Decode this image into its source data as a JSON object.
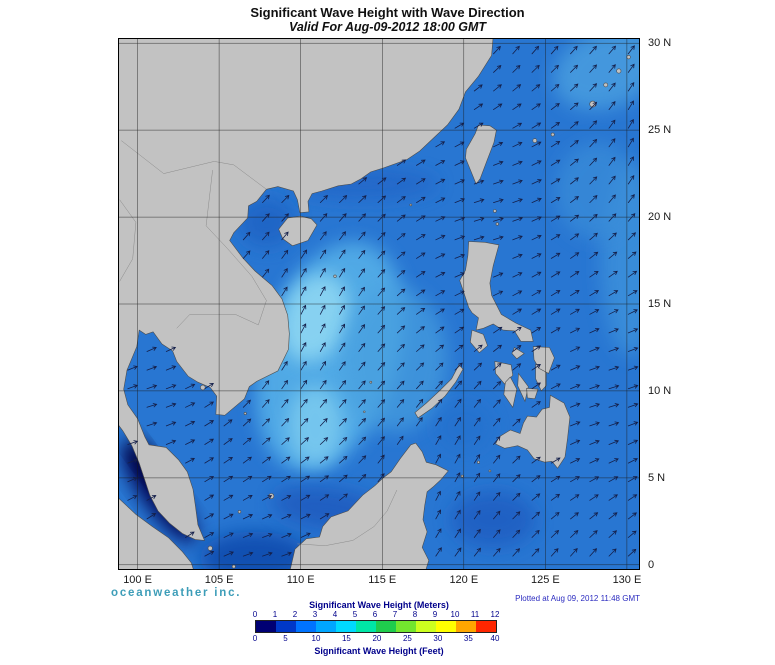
{
  "title": "Significant Wave Height with Wave Direction",
  "subtitle": "Valid For Aug-09-2012 18:00 GMT",
  "axes": {
    "lon_ticks": [
      100,
      105,
      110,
      115,
      120,
      125,
      130
    ],
    "lon_labels": [
      "100 E",
      "105 E",
      "110 E",
      "115 E",
      "120 E",
      "125 E",
      "130 E"
    ],
    "lat_ticks": [
      30,
      25,
      20,
      15,
      10,
      5,
      0
    ],
    "lat_labels": [
      "30 N",
      "25 N",
      "20 N",
      "15 N",
      "10 N",
      "5 N",
      "0"
    ]
  },
  "branding": {
    "text": "oceanweather inc.",
    "color": "#3D9DB8"
  },
  "plotted": {
    "text": "Plotted at Aug 09, 2012 11:48 GMT",
    "color": "#2B2BC0"
  },
  "legend": {
    "meters_label": "Significant Wave Height (Meters)",
    "feet_label": "Significant Wave Height (Feet)",
    "meters_ticks": [
      0,
      1,
      2,
      3,
      4,
      5,
      6,
      7,
      8,
      9,
      10,
      11,
      12
    ],
    "feet_ticks": [
      0,
      5,
      10,
      15,
      20,
      25,
      30,
      35,
      40
    ],
    "colors": [
      "#000073",
      "#0038C8",
      "#0073FF",
      "#00A6FF",
      "#00D9FF",
      "#00E6A6",
      "#1FCC4D",
      "#73E62E",
      "#CCFF1F",
      "#FFFF00",
      "#FFA600",
      "#FF2600"
    ],
    "text_color": "#00008B"
  },
  "map": {
    "sea_base_color": "#2876D2",
    "land_color": "#C2C2C2"
  },
  "chart_data": {
    "type": "heatmap",
    "title": "Significant Wave Height with Wave Direction",
    "valid": "Aug-09-2012 18:00 GMT",
    "x_ticks": [
      "100 E",
      "105 E",
      "110 E",
      "115 E",
      "120 E",
      "125 E",
      "130 E"
    ],
    "y_ticks": [
      "30 N",
      "25 N",
      "20 N",
      "15 N",
      "10 N",
      "5 N",
      "0"
    ],
    "colorbar_meters": [
      0,
      1,
      2,
      3,
      4,
      5,
      6,
      7,
      8,
      9,
      10,
      11,
      12
    ],
    "colorbar_feet": [
      0,
      5,
      10,
      15,
      20,
      25,
      30,
      35,
      40
    ],
    "colorbar_colors": [
      "#000073",
      "#0038C8",
      "#0073FF",
      "#00A6FF",
      "#00D9FF",
      "#00E6A6",
      "#1FCC4D",
      "#73E62E",
      "#CCFF1F",
      "#FFFF00",
      "#FFA600",
      "#FF2600"
    ],
    "overlay": "wave direction arrows"
  }
}
